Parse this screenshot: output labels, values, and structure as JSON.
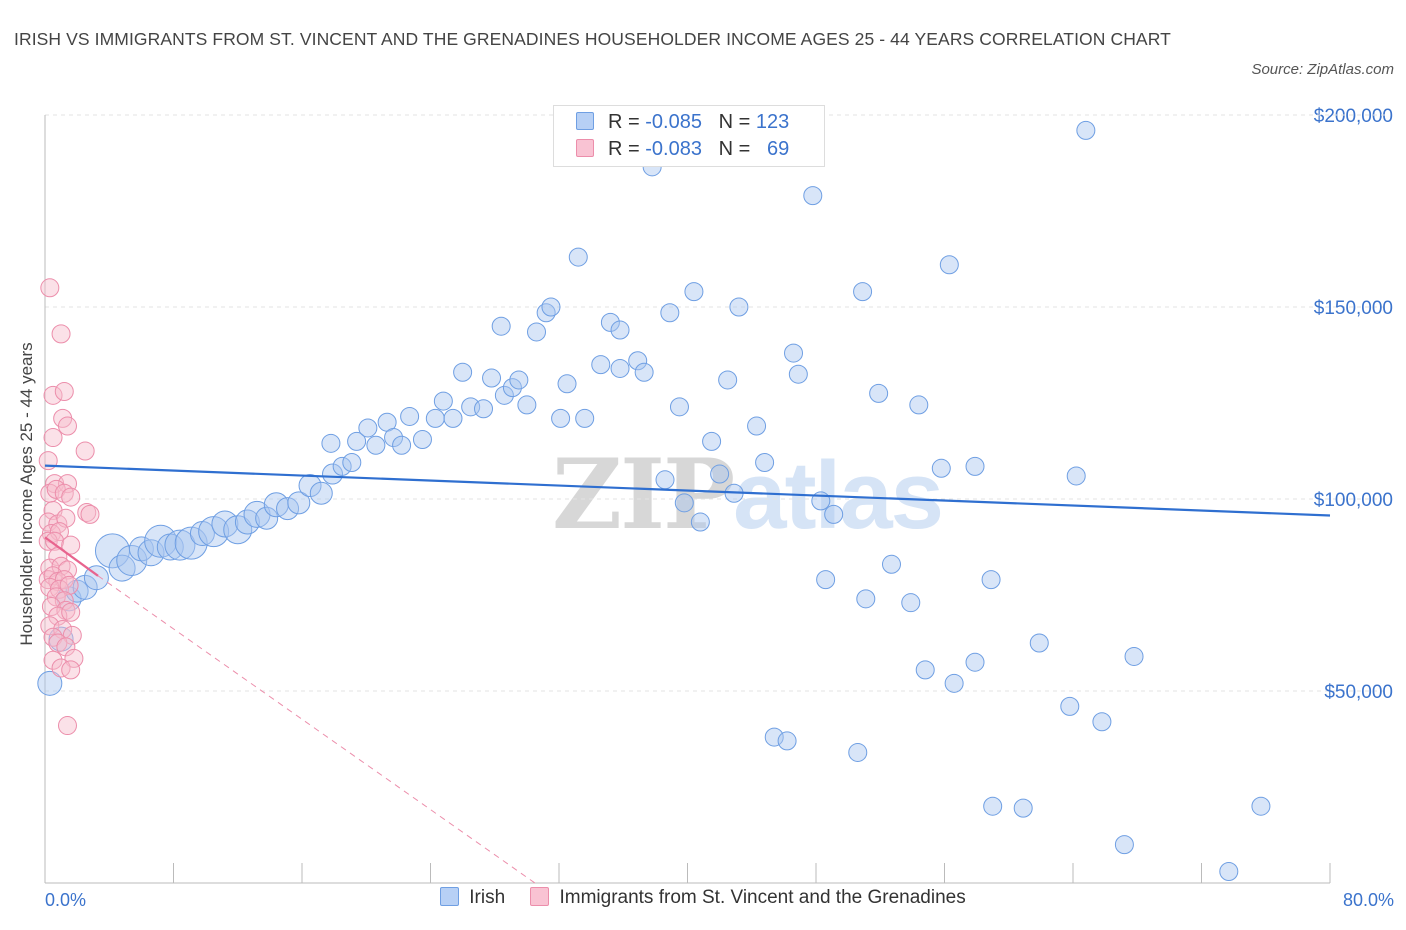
{
  "title": "IRISH VS IMMIGRANTS FROM ST. VINCENT AND THE GRENADINES HOUSEHOLDER INCOME AGES 25 - 44 YEARS CORRELATION CHART",
  "source": "Source: ZipAtlas.com",
  "watermark": {
    "part1": "ZIP",
    "part2": "atlas"
  },
  "stats": {
    "irish": {
      "r_label": "R =",
      "r": "-0.085",
      "n_label": "N =",
      "n": "123"
    },
    "svg": {
      "r_label": "R =",
      "r": "-0.083",
      "n_label": "N =",
      "n": "69"
    }
  },
  "legend": {
    "irish": "Irish",
    "svg": "Immigrants from St. Vincent and the Grenadines"
  },
  "colors": {
    "irish": "#6f9fe3",
    "irish_fill": "#a9c6f0",
    "svg": "#ec8eab",
    "svg_fill": "#f7bccd",
    "irish_line": "#2f6fd0",
    "svg_line": "#e8648e",
    "tick_text": "#3b73cc"
  },
  "chart_data": {
    "type": "scatter",
    "title": "IRISH VS IMMIGRANTS FROM ST. VINCENT AND THE GRENADINES HOUSEHOLDER INCOME AGES 25 - 44 YEARS CORRELATION CHART",
    "xlabel": "",
    "ylabel": "Householder Income Ages 25 - 44 years",
    "xlim": [
      0,
      80
    ],
    "ylim": [
      0,
      200000
    ],
    "x_tick_labels": [
      "0.0%",
      "80.0%"
    ],
    "y_ticks": [
      50000,
      100000,
      150000,
      200000
    ],
    "y_tick_labels": [
      "$50,000",
      "$100,000",
      "$150,000",
      "$200,000"
    ],
    "grid": true,
    "legend_position": "bottom-center",
    "series": [
      {
        "name": "Irish",
        "trend": {
          "x": [
            0,
            80
          ],
          "y": [
            108700,
            95700
          ]
        },
        "points": [
          [
            0.3,
            52000,
            12
          ],
          [
            1.0,
            63500,
            12
          ],
          [
            1.5,
            74000,
            12
          ],
          [
            2.0,
            76000,
            11
          ],
          [
            2.5,
            77000,
            12
          ],
          [
            3.2,
            79500,
            12
          ],
          [
            4.2,
            86500,
            17
          ],
          [
            4.8,
            82000,
            13
          ],
          [
            5.4,
            84000,
            15
          ],
          [
            6.0,
            87000,
            12
          ],
          [
            6.6,
            86000,
            13
          ],
          [
            7.2,
            89000,
            16
          ],
          [
            7.8,
            87500,
            13
          ],
          [
            8.4,
            88000,
            15
          ],
          [
            9.1,
            88500,
            16
          ],
          [
            9.8,
            91000,
            12
          ],
          [
            10.5,
            91500,
            15
          ],
          [
            11.2,
            93500,
            13
          ],
          [
            12.0,
            92000,
            14
          ],
          [
            12.6,
            94000,
            12
          ],
          [
            13.2,
            96000,
            13
          ],
          [
            13.8,
            95000,
            11
          ],
          [
            14.4,
            98500,
            12
          ],
          [
            15.1,
            97500,
            11
          ],
          [
            15.8,
            99000,
            11
          ],
          [
            16.5,
            103500,
            11
          ],
          [
            17.2,
            101500,
            11
          ],
          [
            17.9,
            106500,
            10
          ],
          [
            18.5,
            108500,
            9
          ],
          [
            19.1,
            109500,
            9
          ],
          [
            17.8,
            114500,
            9
          ],
          [
            19.4,
            115000,
            9
          ],
          [
            20.1,
            118500,
            9
          ],
          [
            20.6,
            114000,
            9
          ],
          [
            21.3,
            120000,
            9
          ],
          [
            21.7,
            116000,
            9
          ],
          [
            22.2,
            114000,
            9
          ],
          [
            22.7,
            121500,
            9
          ],
          [
            23.5,
            115500,
            9
          ],
          [
            24.3,
            121000,
            9
          ],
          [
            24.8,
            125500,
            9
          ],
          [
            25.4,
            121000,
            9
          ],
          [
            26.0,
            133000,
            9
          ],
          [
            26.5,
            124000,
            9
          ],
          [
            27.3,
            123500,
            9
          ],
          [
            27.8,
            131500,
            9
          ],
          [
            28.6,
            127000,
            9
          ],
          [
            29.1,
            129000,
            9
          ],
          [
            29.5,
            131000,
            9
          ],
          [
            30.0,
            124500,
            9
          ],
          [
            28.4,
            145000,
            9
          ],
          [
            30.6,
            143500,
            9
          ],
          [
            31.2,
            148500,
            9
          ],
          [
            31.5,
            150000,
            9
          ],
          [
            32.1,
            121000,
            9
          ],
          [
            32.5,
            130000,
            9
          ],
          [
            33.2,
            163000,
            9
          ],
          [
            33.6,
            121000,
            9
          ],
          [
            34.6,
            135000,
            9
          ],
          [
            35.2,
            146000,
            9
          ],
          [
            35.8,
            144000,
            9
          ],
          [
            35.8,
            134000,
            9
          ],
          [
            36.9,
            136000,
            9
          ],
          [
            37.3,
            133000,
            9
          ],
          [
            37.8,
            186500,
            9
          ],
          [
            38.6,
            105000,
            9
          ],
          [
            38.9,
            148500,
            9
          ],
          [
            39.5,
            124000,
            9
          ],
          [
            39.8,
            99000,
            9
          ],
          [
            40.4,
            154000,
            9
          ],
          [
            40.8,
            94000,
            9
          ],
          [
            41.5,
            115000,
            9
          ],
          [
            42.0,
            106500,
            9
          ],
          [
            42.5,
            131000,
            9
          ],
          [
            42.9,
            101500,
            9
          ],
          [
            43.2,
            150000,
            9
          ],
          [
            44.3,
            119000,
            9
          ],
          [
            44.8,
            109500,
            9
          ],
          [
            45.4,
            38000,
            9
          ],
          [
            46.2,
            37000,
            9
          ],
          [
            46.6,
            138000,
            9
          ],
          [
            46.9,
            132500,
            9
          ],
          [
            47.8,
            179000,
            9
          ],
          [
            48.3,
            99500,
            9
          ],
          [
            48.6,
            79000,
            9
          ],
          [
            49.1,
            96000,
            9
          ],
          [
            50.6,
            34000,
            9
          ],
          [
            50.9,
            154000,
            9
          ],
          [
            51.1,
            74000,
            9
          ],
          [
            51.9,
            127500,
            9
          ],
          [
            52.7,
            83000,
            9
          ],
          [
            53.9,
            73000,
            9
          ],
          [
            54.4,
            124500,
            9
          ],
          [
            54.8,
            55500,
            9
          ],
          [
            55.8,
            108000,
            9
          ],
          [
            56.3,
            161000,
            9
          ],
          [
            56.6,
            52000,
            9
          ],
          [
            57.9,
            108500,
            9
          ],
          [
            57.9,
            57500,
            9
          ],
          [
            59.0,
            20000,
            9
          ],
          [
            58.9,
            79000,
            9
          ],
          [
            60.9,
            19500,
            9
          ],
          [
            61.9,
            62500,
            9
          ],
          [
            63.8,
            46000,
            9
          ],
          [
            64.2,
            106000,
            9
          ],
          [
            64.8,
            196000,
            9
          ],
          [
            65.8,
            42000,
            9
          ],
          [
            67.2,
            10000,
            9
          ],
          [
            67.8,
            59000,
            9
          ],
          [
            73.7,
            3000,
            9
          ],
          [
            75.7,
            20000,
            9
          ]
        ]
      },
      {
        "name": "Immigrants from St. Vincent and the Grenadines",
        "trend": {
          "x": [
            0,
            3.3
          ],
          "y": [
            90000,
            80000
          ]
        },
        "trend_extrapolated": {
          "x": [
            3.3,
            30.5
          ],
          "y": [
            80000,
            0
          ]
        },
        "points": [
          [
            0.3,
            155000,
            9
          ],
          [
            1.0,
            143000,
            9
          ],
          [
            0.5,
            127000,
            9
          ],
          [
            1.2,
            128000,
            9
          ],
          [
            1.1,
            121000,
            9
          ],
          [
            1.4,
            119000,
            9
          ],
          [
            0.5,
            116000,
            9
          ],
          [
            2.5,
            112500,
            9
          ],
          [
            0.2,
            110000,
            9
          ],
          [
            0.6,
            104000,
            9
          ],
          [
            1.4,
            104000,
            9
          ],
          [
            0.3,
            101500,
            9
          ],
          [
            0.7,
            102500,
            9
          ],
          [
            1.2,
            101500,
            9
          ],
          [
            1.6,
            100500,
            9
          ],
          [
            0.5,
            97000,
            9
          ],
          [
            2.6,
            96500,
            9
          ],
          [
            2.8,
            96000,
            9
          ],
          [
            0.2,
            94000,
            9
          ],
          [
            0.8,
            93500,
            9
          ],
          [
            1.3,
            95000,
            9
          ],
          [
            0.4,
            91000,
            9
          ],
          [
            0.9,
            91500,
            9
          ],
          [
            0.2,
            89000,
            9
          ],
          [
            0.6,
            89000,
            9
          ],
          [
            1.6,
            88000,
            9
          ],
          [
            0.8,
            85000,
            9
          ],
          [
            0.3,
            82000,
            9
          ],
          [
            1.0,
            82500,
            9
          ],
          [
            1.4,
            81500,
            9
          ],
          [
            0.2,
            79000,
            9
          ],
          [
            0.5,
            80000,
            9
          ],
          [
            0.8,
            78500,
            9
          ],
          [
            1.2,
            79000,
            9
          ],
          [
            0.3,
            77000,
            9
          ],
          [
            0.9,
            76500,
            9
          ],
          [
            1.5,
            77500,
            9
          ],
          [
            0.7,
            74500,
            9
          ],
          [
            1.2,
            73500,
            9
          ],
          [
            0.4,
            72000,
            9
          ],
          [
            1.3,
            71000,
            9
          ],
          [
            0.8,
            69500,
            9
          ],
          [
            1.6,
            70500,
            9
          ],
          [
            0.3,
            67000,
            9
          ],
          [
            1.1,
            66000,
            9
          ],
          [
            0.5,
            64000,
            9
          ],
          [
            1.7,
            64500,
            9
          ],
          [
            0.8,
            62500,
            9
          ],
          [
            1.3,
            61500,
            9
          ],
          [
            1.8,
            58500,
            9
          ],
          [
            0.5,
            58000,
            9
          ],
          [
            1.0,
            56000,
            9
          ],
          [
            1.6,
            55500,
            9
          ],
          [
            1.4,
            41000,
            9
          ]
        ]
      }
    ]
  }
}
